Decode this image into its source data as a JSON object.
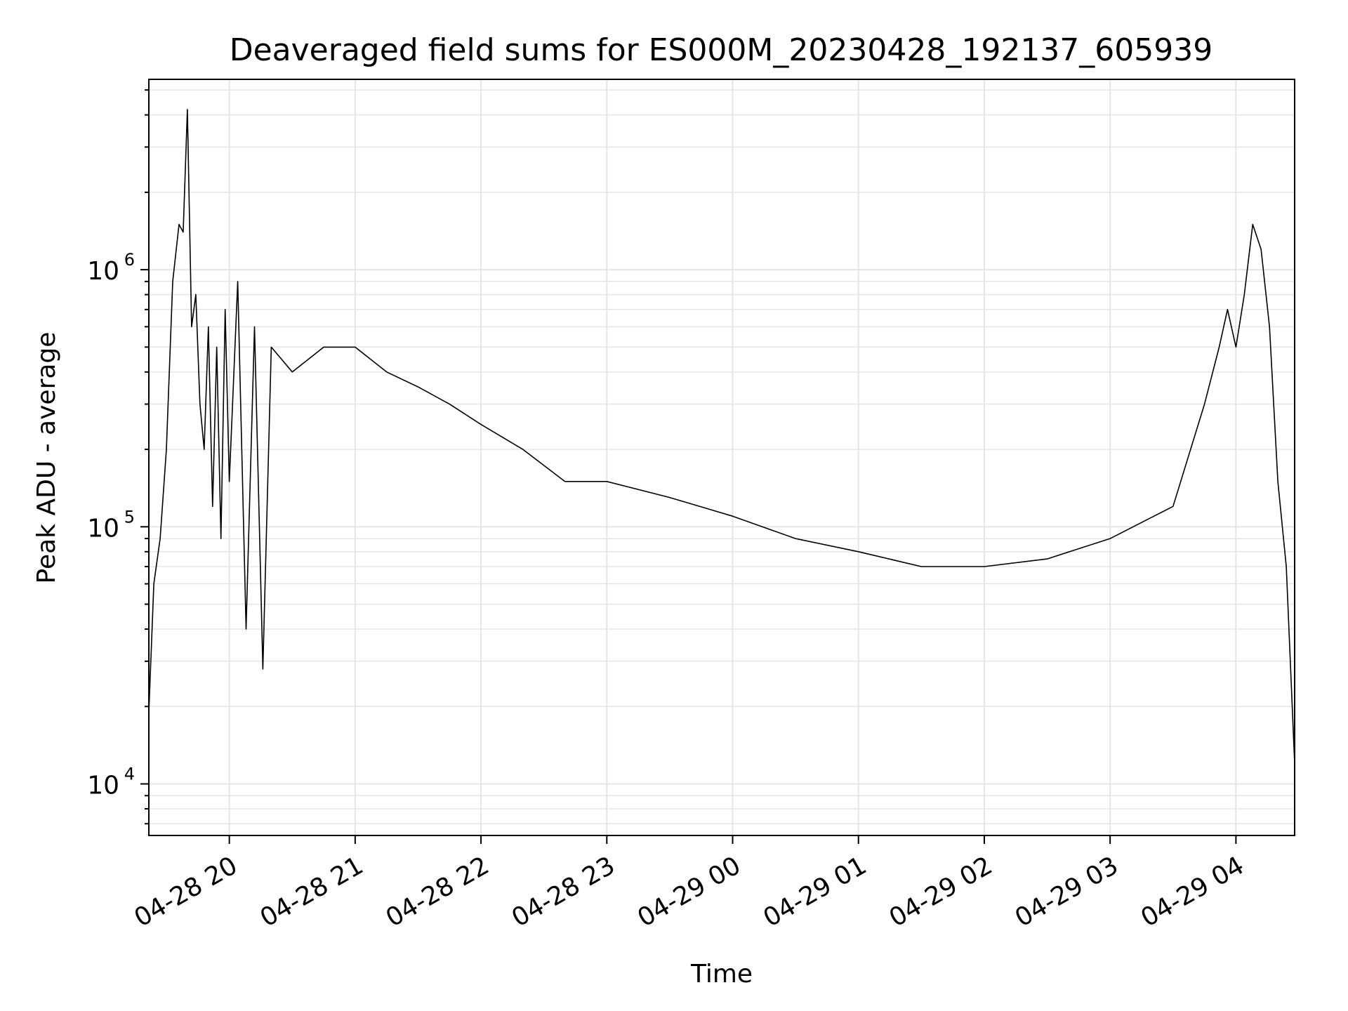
{
  "chart_data": {
    "type": "line",
    "title": "Deaveraged field sums for ES000M_20230428_192137_605939",
    "xlabel": "Time",
    "ylabel": "Peak ADU - average",
    "yscale": "log",
    "ylim": [
      6300,
      5500000
    ],
    "xlim": [
      "2023-04-28 19:21:37",
      "2023-04-29 04:28:00"
    ],
    "grid": true,
    "line_color": "#000000",
    "grid_color": "#e5e5e5",
    "x_ticks": [
      {
        "value": "2023-04-28 20:00",
        "label": "04-28 20"
      },
      {
        "value": "2023-04-28 21:00",
        "label": "04-28 21"
      },
      {
        "value": "2023-04-28 22:00",
        "label": "04-28 22"
      },
      {
        "value": "2023-04-28 23:00",
        "label": "04-28 23"
      },
      {
        "value": "2023-04-29 00:00",
        "label": "04-29 00"
      },
      {
        "value": "2023-04-29 01:00",
        "label": "04-29 01"
      },
      {
        "value": "2023-04-29 02:00",
        "label": "04-29 02"
      },
      {
        "value": "2023-04-29 03:00",
        "label": "04-29 03"
      },
      {
        "value": "2023-04-29 04:00",
        "label": "04-29 04"
      }
    ],
    "y_ticks": [
      {
        "value": 10000,
        "base": "10",
        "exp": "4"
      },
      {
        "value": 100000,
        "base": "10",
        "exp": "5"
      },
      {
        "value": 1000000,
        "base": "10",
        "exp": "6"
      }
    ],
    "series": [
      {
        "x": [
          "2023-04-28 19:21:37",
          "2023-04-28 19:24",
          "2023-04-28 19:27",
          "2023-04-28 19:30",
          "2023-04-28 19:33",
          "2023-04-28 19:36",
          "2023-04-28 19:38",
          "2023-04-28 19:40",
          "2023-04-28 19:42",
          "2023-04-28 19:44",
          "2023-04-28 19:46",
          "2023-04-28 19:48",
          "2023-04-28 19:50",
          "2023-04-28 19:52",
          "2023-04-28 19:54",
          "2023-04-28 19:56",
          "2023-04-28 19:58",
          "2023-04-28 20:00",
          "2023-04-28 20:04",
          "2023-04-28 20:08",
          "2023-04-28 20:12",
          "2023-04-28 20:16",
          "2023-04-28 20:20",
          "2023-04-28 20:30",
          "2023-04-28 20:45",
          "2023-04-28 21:00",
          "2023-04-28 21:15",
          "2023-04-28 21:30",
          "2023-04-28 21:45",
          "2023-04-28 22:00",
          "2023-04-28 22:20",
          "2023-04-28 22:40",
          "2023-04-28 23:00",
          "2023-04-28 23:30",
          "2023-04-29 00:00",
          "2023-04-29 00:30",
          "2023-04-29 01:00",
          "2023-04-29 01:30",
          "2023-04-29 02:00",
          "2023-04-29 02:30",
          "2023-04-29 03:00",
          "2023-04-29 03:30",
          "2023-04-29 03:45",
          "2023-04-29 03:52",
          "2023-04-29 03:56",
          "2023-04-29 04:00",
          "2023-04-29 04:04",
          "2023-04-29 04:08",
          "2023-04-29 04:12",
          "2023-04-29 04:16",
          "2023-04-29 04:20",
          "2023-04-29 04:24",
          "2023-04-29 04:28"
        ],
        "y": [
          19000,
          60000,
          90000,
          200000,
          900000,
          1500000,
          1400000,
          4200000,
          600000,
          800000,
          300000,
          200000,
          600000,
          120000,
          500000,
          90000,
          700000,
          150000,
          900000,
          40000,
          600000,
          28000,
          500000,
          400000,
          500000,
          500000,
          400000,
          350000,
          300000,
          250000,
          200000,
          150000,
          150000,
          130000,
          110000,
          90000,
          80000,
          70000,
          70000,
          75000,
          90000,
          120000,
          300000,
          500000,
          700000,
          500000,
          800000,
          1500000,
          1200000,
          600000,
          150000,
          70000,
          12000
        ]
      }
    ]
  }
}
